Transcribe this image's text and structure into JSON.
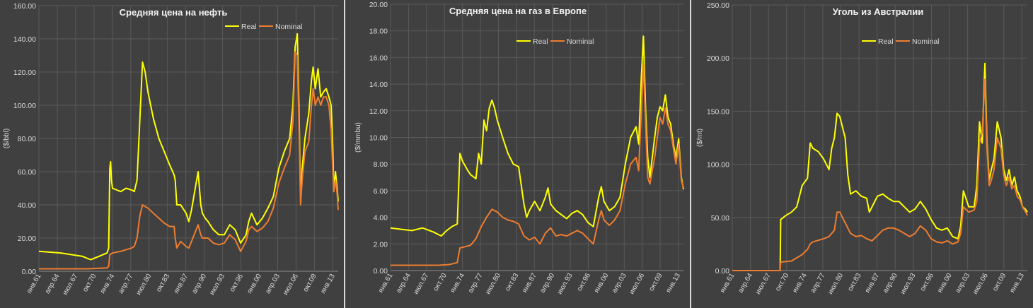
{
  "chart_data": [
    {
      "type": "line",
      "title": "Средняя цена на нефть",
      "ylabel": "($/bbl)",
      "ylim": [
        0,
        160
      ],
      "yticks": [
        "0.00",
        "20.00",
        "40.00",
        "60.00",
        "80.00",
        "100.00",
        "120.00",
        "140.00",
        "160.00"
      ],
      "xlim": [
        1961.0,
        2015.9
      ],
      "xtick_labels": [
        "янв.61",
        "апр.64",
        "июл.67",
        "окт.70",
        "янв.74",
        "апр.77",
        "июл.80",
        "окт.83",
        "янв.87",
        "апр.90",
        "июл.93",
        "окт.96",
        "янв.00",
        "апр.03",
        "июл.06",
        "окт.09",
        "янв.13"
      ],
      "legend": "top-right",
      "grid": true,
      "colors": {
        "Real": "#ffff00",
        "Nominal": "#ed7d31"
      },
      "series": [
        {
          "name": "Real",
          "x": [
            1961,
            1965,
            1969,
            1970.5,
            1972,
            1973.5,
            1973.8,
            1974.0,
            1974.15,
            1974.3,
            1974.5,
            1976,
            1977,
            1978,
            1978.5,
            1979.0,
            1979.5,
            1980.0,
            1980.5,
            1981,
            1982,
            1983,
            1984,
            1985,
            1985.8,
            1986.0,
            1986.3,
            1987,
            1988,
            1988.5,
            1989,
            1990.2,
            1990.7,
            1991.0,
            1991.5,
            1992,
            1993,
            1994,
            1995,
            1996,
            1997,
            1998,
            1999,
            1999.5,
            2000,
            2001,
            2002,
            2003,
            2004,
            2005,
            2006,
            2007,
            2007.6,
            2008.0,
            2008.4,
            2008.7,
            2009.0,
            2009.3,
            2009.8,
            2010.5,
            2011.0,
            2011.3,
            2011.7,
            2012.2,
            2012.7,
            2013.2,
            2013.7,
            2014.2,
            2014.6,
            2014.9,
            2015.1,
            2015.4,
            2015.7,
            2015.9
          ],
          "y": [
            12,
            11,
            9,
            7,
            9,
            11,
            14,
            62,
            66,
            55,
            50,
            48,
            50,
            49,
            48,
            55,
            90,
            126,
            120,
            108,
            92,
            80,
            72,
            64,
            58,
            55,
            40,
            40,
            35,
            30,
            37,
            60,
            40,
            35,
            32,
            30,
            25,
            22,
            22,
            28,
            25,
            17,
            22,
            30,
            35,
            28,
            32,
            38,
            45,
            62,
            72,
            80,
            100,
            135,
            143,
            100,
            45,
            62,
            80,
            95,
            115,
            123,
            110,
            122,
            105,
            108,
            110,
            105,
            100,
            75,
            48,
            60,
            50,
            42
          ]
        },
        {
          "name": "Nominal",
          "x": [
            1961,
            1970,
            1973.5,
            1973.8,
            1974.0,
            1974.5,
            1976,
            1977,
            1978,
            1978.5,
            1979.0,
            1979.5,
            1980.0,
            1981,
            1982,
            1983,
            1984,
            1985,
            1985.8,
            1986.0,
            1986.3,
            1987,
            1988,
            1988.5,
            1989,
            1990.2,
            1990.7,
            1991.0,
            1992,
            1993,
            1994,
            1995,
            1996,
            1997,
            1998,
            1999,
            1999.5,
            2000,
            2001,
            2002,
            2003,
            2004,
            2005,
            2006,
            2007,
            2007.6,
            2008.0,
            2008.4,
            2008.7,
            2009.0,
            2009.3,
            2009.8,
            2010.5,
            2011.0,
            2011.3,
            2011.7,
            2012.2,
            2012.7,
            2013.2,
            2013.7,
            2014.2,
            2014.6,
            2014.9,
            2015.1,
            2015.4,
            2015.7,
            2015.9
          ],
          "y": [
            1.5,
            1.5,
            2,
            3,
            10,
            11,
            12,
            13,
            14,
            15,
            20,
            33,
            40,
            38,
            35,
            32,
            29,
            27,
            27,
            20,
            14,
            18,
            15,
            14,
            18,
            28,
            22,
            20,
            20,
            17,
            16,
            17,
            22,
            19,
            12,
            18,
            25,
            27,
            24,
            26,
            30,
            38,
            53,
            62,
            70,
            90,
            132,
            130,
            90,
            40,
            55,
            72,
            78,
            100,
            110,
            100,
            105,
            100,
            105,
            105,
            100,
            85,
            62,
            48,
            55,
            47,
            37
          ]
        }
      ]
    },
    {
      "type": "line",
      "title": "Средняя цена на газ в Европе",
      "ylabel": "($/mmbu)",
      "ylim": [
        0,
        20
      ],
      "yticks": [
        "0.00",
        "2.00",
        "4.00",
        "6.00",
        "8.00",
        "10.00",
        "12.00",
        "14.00",
        "16.00",
        "18.00",
        "20.00"
      ],
      "xlim": [
        1961.0,
        2015.9
      ],
      "xtick_labels": [
        "янв.61",
        "апр.64",
        "июл.67",
        "окт.70",
        "янв.74",
        "апр.77",
        "июл.80",
        "окт.83",
        "янв.87",
        "апр.90",
        "июл.93",
        "окт.96",
        "янв.00",
        "апр.03",
        "июл.06",
        "окт.09",
        "янв.13"
      ],
      "legend": "top-right",
      "grid": true,
      "colors": {
        "Real": "#ffff00",
        "Nominal": "#ed7d31"
      },
      "series": [
        {
          "name": "Real",
          "x": [
            1961,
            1963,
            1965,
            1967,
            1969,
            1970.5,
            1971.5,
            1972.5,
            1973.5,
            1974.0,
            1974.5,
            1975.5,
            1976,
            1977,
            1977.5,
            1978,
            1978.5,
            1979,
            1979.5,
            1980,
            1980.5,
            1981,
            1982,
            1983,
            1984,
            1985,
            1986,
            1986.5,
            1987,
            1988,
            1989,
            1990,
            1990.5,
            1991,
            1992,
            1993,
            1994,
            1995,
            1996,
            1997,
            1998,
            1999,
            2000,
            2000.5,
            2001,
            2002,
            2003,
            2004,
            2005,
            2006,
            2007,
            2007.5,
            2008.0,
            2008.4,
            2008.8,
            2009.2,
            2009.6,
            2010.5,
            2011,
            2011.5,
            2012,
            2012.5,
            2013,
            2013.5,
            2014,
            2014.5,
            2015,
            2015.5,
            2015.9
          ],
          "y": [
            3.2,
            3.1,
            3.0,
            3.2,
            2.9,
            2.6,
            3.0,
            3.3,
            3.5,
            8.8,
            8.2,
            7.5,
            7.2,
            6.9,
            8.8,
            8.0,
            11.3,
            10.5,
            12.2,
            12.8,
            12.2,
            11.3,
            10.0,
            8.8,
            8.0,
            7.8,
            5.0,
            4.0,
            4.5,
            5.2,
            4.5,
            5.5,
            6.2,
            5.0,
            4.5,
            4.2,
            3.9,
            4.3,
            4.5,
            4.2,
            3.6,
            3.3,
            5.5,
            6.3,
            5.2,
            4.5,
            4.8,
            5.5,
            8.0,
            10.0,
            10.8,
            9.5,
            14.5,
            17.6,
            12.0,
            8.5,
            7.0,
            10.0,
            11.5,
            12.3,
            12.0,
            13.2,
            11.5,
            11.0,
            9.5,
            8.5,
            9.9,
            7.0,
            6.1
          ]
        },
        {
          "name": "Nominal",
          "x": [
            1961,
            1970,
            1972,
            1973.5,
            1974.0,
            1975,
            1976,
            1977,
            1978,
            1979,
            1980,
            1981,
            1982,
            1983,
            1984,
            1985,
            1986,
            1987,
            1988,
            1989,
            1990,
            1991,
            1992,
            1993,
            1994,
            1995,
            1996,
            1997,
            1998,
            1999,
            2000,
            2000.5,
            2001,
            2002,
            2003,
            2004,
            2005,
            2006,
            2007,
            2007.5,
            2008.0,
            2008.4,
            2008.8,
            2009.2,
            2009.6,
            2010.5,
            2011,
            2011.5,
            2012,
            2012.5,
            2013,
            2013.5,
            2014,
            2014.5,
            2015,
            2015.5,
            2015.9
          ],
          "y": [
            0.4,
            0.4,
            0.45,
            0.6,
            1.7,
            1.8,
            1.9,
            2.4,
            3.3,
            4.0,
            4.6,
            4.4,
            4.0,
            3.8,
            3.7,
            3.5,
            2.6,
            2.3,
            2.5,
            2.0,
            2.8,
            3.2,
            2.6,
            2.7,
            2.6,
            2.8,
            3.0,
            2.8,
            2.4,
            2.0,
            3.8,
            4.5,
            3.8,
            3.4,
            3.8,
            4.5,
            6.5,
            8.0,
            8.5,
            7.5,
            12.0,
            15.5,
            11.0,
            7.0,
            6.5,
            8.5,
            10.0,
            11.5,
            11.0,
            12.2,
            11.0,
            10.5,
            9.2,
            8.0,
            9.5,
            6.8,
            6.2
          ]
        }
      ]
    },
    {
      "type": "line",
      "title": "Уголь из Австралии",
      "ylabel": "($/mt)",
      "ylim": [
        0,
        250
      ],
      "yticks": [
        "0.00",
        "50.00",
        "100.00",
        "150.00",
        "200.00",
        "250.00"
      ],
      "xlim": [
        1961.0,
        2015.9
      ],
      "xtick_labels": [
        "янв.61",
        "апр.64",
        "июл.67",
        "окт.70",
        "янв.74",
        "апр.77",
        "июл.80",
        "окт.83",
        "янв.87",
        "апр.90",
        "июл.93",
        "окт.96",
        "янв.00",
        "апр.03",
        "июл.06",
        "окт.09",
        "янв.13"
      ],
      "legend": "top-right",
      "grid": true,
      "colors": {
        "Real": "#ffff00",
        "Nominal": "#ed7d31"
      },
      "series": [
        {
          "name": "Real",
          "x": [
            1961,
            1965,
            1969.9,
            1970.0,
            1971,
            1972,
            1973,
            1974,
            1975,
            1975.5,
            1976,
            1977,
            1978,
            1979,
            1979.5,
            1980,
            1980.5,
            1981,
            1982,
            1982.5,
            1983,
            1984,
            1985,
            1986,
            1986.5,
            1987,
            1988,
            1989,
            1990,
            1991,
            1992,
            1993,
            1994,
            1995,
            1996,
            1997,
            1998,
            1999,
            2000,
            2001,
            2002,
            2003,
            2003.5,
            2004,
            2005,
            2006,
            2006.5,
            2007,
            2007.5,
            2008.0,
            2008.4,
            2008.8,
            2009.2,
            2009.7,
            2010.3,
            2011,
            2011.5,
            2012,
            2012.5,
            2013,
            2013.5,
            2014,
            2014.5,
            2015,
            2015.5,
            2015.9
          ],
          "y": [
            0,
            0,
            0,
            48,
            52,
            55,
            60,
            80,
            87,
            120,
            115,
            112,
            105,
            95,
            115,
            125,
            148,
            145,
            125,
            90,
            72,
            75,
            70,
            68,
            55,
            60,
            70,
            72,
            68,
            65,
            65,
            60,
            55,
            58,
            65,
            58,
            48,
            40,
            38,
            40,
            32,
            30,
            42,
            75,
            60,
            60,
            80,
            140,
            120,
            195,
            120,
            85,
            95,
            105,
            140,
            125,
            95,
            85,
            95,
            80,
            88,
            75,
            70,
            60,
            58,
            55
          ]
        },
        {
          "name": "Nominal",
          "x": [
            1961,
            1969.9,
            1970.0,
            1972,
            1973,
            1974,
            1975,
            1975.5,
            1976,
            1978,
            1979,
            1980,
            1980.5,
            1981,
            1982,
            1983,
            1984,
            1985,
            1986,
            1987,
            1988,
            1989,
            1990,
            1991,
            1992,
            1993,
            1994,
            1995,
            1996,
            1997,
            1998,
            1999,
            2000,
            2001,
            2002,
            2003,
            2003.5,
            2004,
            2005,
            2006,
            2006.5,
            2007,
            2007.5,
            2008.0,
            2008.4,
            2008.8,
            2009.2,
            2009.7,
            2010.3,
            2011,
            2011.5,
            2012,
            2012.5,
            2013,
            2013.5,
            2014,
            2014.5,
            2015,
            2015.5,
            2015.9
          ],
          "y": [
            0,
            0,
            8,
            9,
            12,
            15,
            20,
            25,
            27,
            30,
            32,
            38,
            55,
            55,
            45,
            35,
            32,
            33,
            30,
            28,
            33,
            38,
            40,
            40,
            38,
            35,
            32,
            35,
            42,
            38,
            30,
            27,
            26,
            28,
            25,
            27,
            35,
            60,
            55,
            57,
            65,
            120,
            130,
            180,
            115,
            80,
            85,
            95,
            125,
            115,
            90,
            80,
            88,
            77,
            80,
            70,
            67,
            60,
            56,
            52
          ]
        }
      ]
    }
  ]
}
